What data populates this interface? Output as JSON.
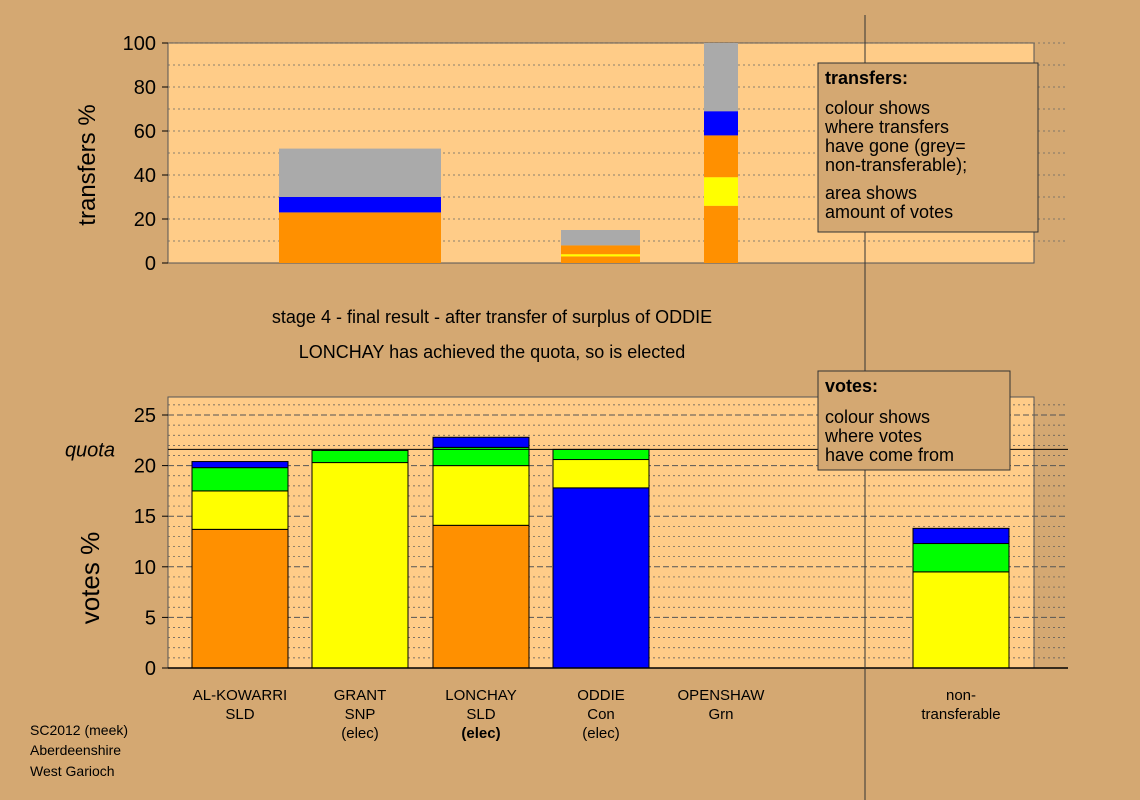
{
  "colors": {
    "background": "#D4A872",
    "plot_bg": "#FFCC88",
    "SLD": "#FF9000",
    "SNP": "#FFFF00",
    "Grn": "#00FF00",
    "Con": "#0000FF",
    "nontransferable": "#AAAAAA"
  },
  "header": {
    "line1": "stage 4 - final result - after transfer of surplus of ODDIE",
    "line2": "LONCHAY has achieved the quota, so is elected"
  },
  "footer": {
    "line1": "SC2012 (meek)",
    "line2": "Aberdeenshire",
    "line3": "West Garioch"
  },
  "legend_transfers": {
    "title": "transfers:",
    "lines": [
      "colour shows",
      "where transfers",
      "have gone (grey=",
      "non-transferable);",
      "area shows",
      "amount of votes"
    ]
  },
  "legend_votes": {
    "title": "votes:",
    "lines": [
      "colour shows",
      "where votes",
      "have come from"
    ]
  },
  "quota_label": "quota",
  "chart_data": [
    {
      "type": "bar",
      "stacked": true,
      "ylabel": "transfers %",
      "ylim": [
        0,
        100
      ],
      "yticks": [
        0,
        20,
        40,
        60,
        80,
        100
      ],
      "bars": [
        {
          "segments": [
            {
              "color": "SLD",
              "value": 23
            },
            {
              "color": "Con",
              "value": 7
            },
            {
              "color": "nontransferable",
              "value": 22
            }
          ]
        },
        {
          "segments": [
            {
              "color": "SLD",
              "value": 3
            },
            {
              "color": "SNP",
              "value": 1
            },
            {
              "color": "SLD",
              "value": 4
            },
            {
              "color": "nontransferable",
              "value": 7
            }
          ]
        },
        {
          "segments": [
            {
              "color": "SLD",
              "value": 26
            },
            {
              "color": "SNP",
              "value": 13
            },
            {
              "color": "SLD",
              "value": 19
            },
            {
              "color": "Con",
              "value": 11
            },
            {
              "color": "nontransferable",
              "value": 31
            }
          ]
        }
      ]
    },
    {
      "type": "bar",
      "stacked": true,
      "ylabel": "votes %",
      "ylim": [
        0,
        26
      ],
      "yticks": [
        0,
        5,
        10,
        15,
        20,
        25
      ],
      "quota": 21.6,
      "candidates": [
        {
          "name": "AL-KOWARRI",
          "party": "SLD",
          "status": "",
          "bold": false,
          "segments": [
            {
              "color": "SLD",
              "value": 13.7
            },
            {
              "color": "SNP",
              "value": 3.8
            },
            {
              "color": "Grn",
              "value": 2.3
            },
            {
              "color": "Con",
              "value": 0.6
            }
          ]
        },
        {
          "name": "GRANT",
          "party": "SNP",
          "status": "(elec)",
          "bold": false,
          "segments": [
            {
              "color": "SNP",
              "value": 20.3
            },
            {
              "color": "Grn",
              "value": 1.2
            }
          ]
        },
        {
          "name": "LONCHAY",
          "party": "SLD",
          "status": "(elec)",
          "bold": true,
          "segments": [
            {
              "color": "SLD",
              "value": 14.1
            },
            {
              "color": "SNP",
              "value": 5.9
            },
            {
              "color": "Grn",
              "value": 1.8
            },
            {
              "color": "Con",
              "value": 1.0
            }
          ]
        },
        {
          "name": "ODDIE",
          "party": "Con",
          "status": "(elec)",
          "bold": false,
          "segments": [
            {
              "color": "Con",
              "value": 17.8
            },
            {
              "color": "SNP",
              "value": 2.8
            },
            {
              "color": "Grn",
              "value": 1.0
            }
          ]
        },
        {
          "name": "OPENSHAW",
          "party": "Grn",
          "status": "",
          "bold": false,
          "segments": []
        },
        {
          "name": "non-",
          "party": "transferable",
          "status": "",
          "bold": false,
          "segments": [
            {
              "color": "SNP",
              "value": 9.5
            },
            {
              "color": "Grn",
              "value": 2.8
            },
            {
              "color": "Con",
              "value": 1.5
            }
          ]
        }
      ]
    }
  ]
}
